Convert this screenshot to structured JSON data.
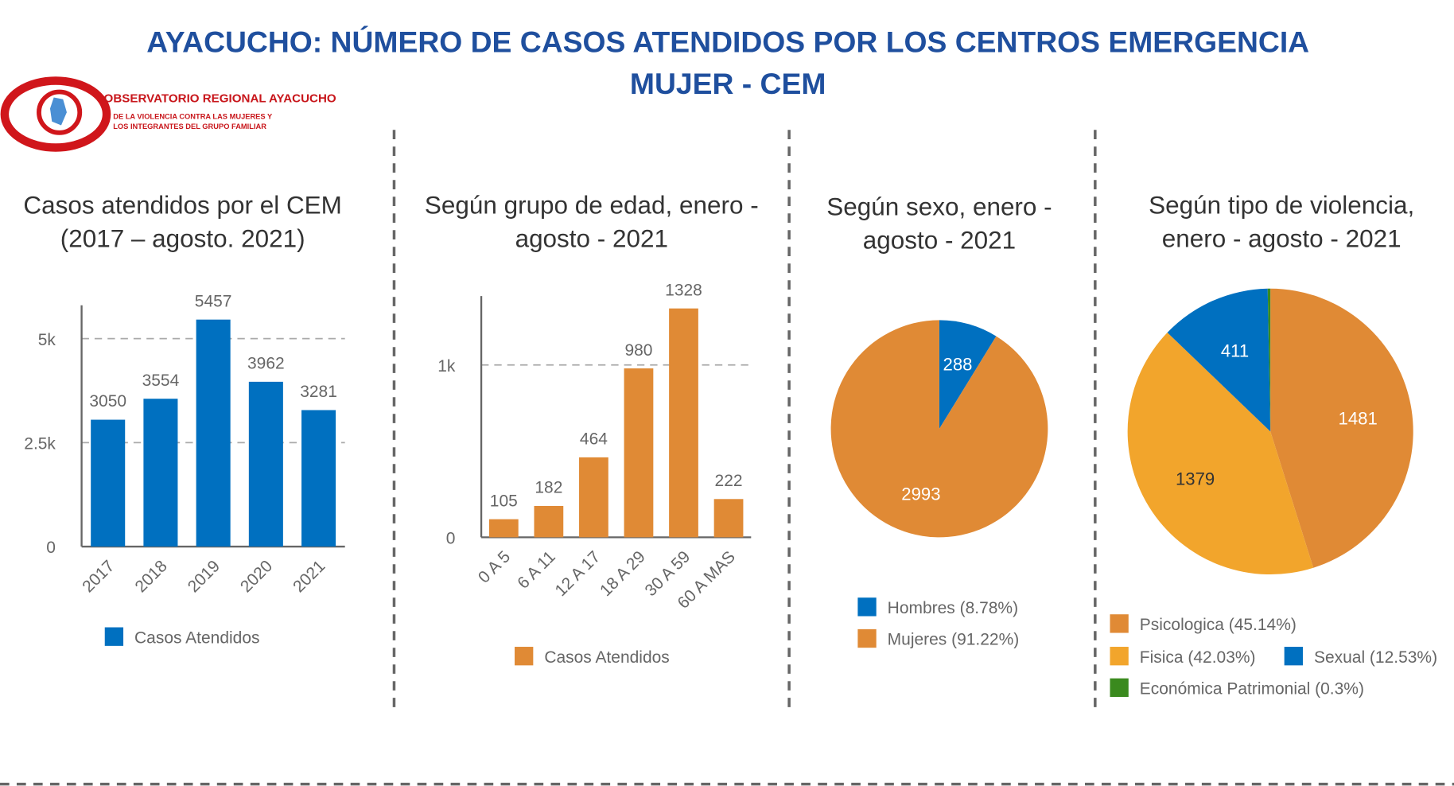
{
  "title": [
    "AYACUCHO: NÚMERO DE CASOS ATENDIDOS POR LOS CENTROS EMERGENCIA",
    "MUJER - CEM"
  ],
  "logo": {
    "name": "OBSERVATORIO REGIONAL AYACUCHO",
    "subtitle": [
      "DE LA VIOLENCIA CONTRA LAS MUJERES Y",
      "LOS INTEGRANTES DEL GRUPO FAMILIAR"
    ]
  },
  "chart_data": [
    {
      "type": "bar",
      "title": [
        "Casos atendidos por el CEM",
        "(2017 – agosto. 2021)"
      ],
      "categories": [
        "2017",
        "2018",
        "2019",
        "2020",
        "2021"
      ],
      "series": [
        {
          "name": "Casos Atendidos",
          "color": "#0070c0",
          "values": [
            3050,
            3554,
            5457,
            3962,
            3281
          ]
        }
      ],
      "ylim": [
        0,
        5800
      ],
      "yticks": [
        0,
        {
          "value": 2500,
          "label": "2.5k"
        },
        {
          "value": 5000,
          "label": "5k"
        }
      ],
      "grid": true
    },
    {
      "type": "bar",
      "title": [
        "Según grupo de edad, enero -",
        "agosto - 2021"
      ],
      "categories": [
        "0 A 5",
        "6 A 11",
        "12 A 17",
        "18 A 29",
        "30 A 59",
        "60 A MAS"
      ],
      "series": [
        {
          "name": "Casos Atendidos",
          "color": "#e08a35",
          "values": [
            105,
            182,
            464,
            980,
            1328,
            222
          ]
        }
      ],
      "ylim": [
        0,
        1400
      ],
      "yticks": [
        0,
        {
          "value": 1000,
          "label": "1k"
        }
      ],
      "grid": true
    },
    {
      "type": "pie",
      "title": [
        "Según sexo, enero -",
        "agosto - 2021"
      ],
      "categories": [
        "Hombres (8.78%)",
        "Mujeres (91.22%)"
      ],
      "values": [
        288,
        2993
      ],
      "colors": [
        "#0070c0",
        "#e08a35"
      ],
      "label_colors": [
        "#ffffff",
        "#ffffff"
      ]
    },
    {
      "type": "pie",
      "title": [
        "Según tipo de violencia,",
        "enero - agosto - 2021"
      ],
      "categories": [
        "Psicologica (45.14%)",
        "Fisica (42.03%)",
        "Sexual (12.53%)",
        "Económica Patrimonial (0.3%)"
      ],
      "values": [
        1481,
        1379,
        411,
        10
      ],
      "colors": [
        "#e08a35",
        "#f2a52c",
        "#0070c0",
        "#3a8a1e"
      ],
      "label_colors": [
        "#ffffff",
        "#333333",
        "#ffffff",
        "#ffffff"
      ]
    }
  ]
}
